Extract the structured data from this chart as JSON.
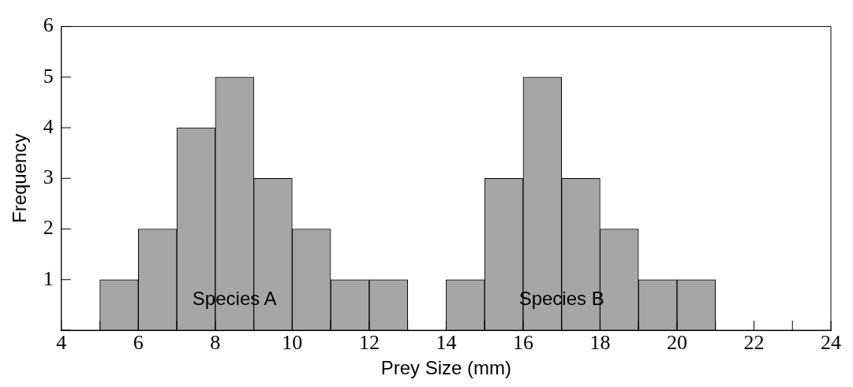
{
  "chart_data": {
    "type": "histogram",
    "xlabel": "Prey Size (mm)",
    "ylabel": "Frequency",
    "bins": [
      5,
      6,
      7,
      8,
      9,
      10,
      11,
      12,
      13,
      14,
      15,
      16,
      17,
      18,
      19,
      20,
      21
    ],
    "values": [
      1,
      2,
      4,
      5,
      3,
      2,
      1,
      1,
      0,
      1,
      3,
      5,
      3,
      2,
      1,
      1
    ],
    "color": "#a6a6a6",
    "xlim": [
      4,
      24
    ],
    "ylim": [
      0,
      6
    ],
    "xticks": [
      4,
      {
        "value": 5,
        "label": null
      },
      6,
      {
        "value": 7,
        "label": null
      },
      8,
      {
        "value": 9,
        "label": null
      },
      10,
      {
        "value": 11,
        "label": null
      },
      12,
      {
        "value": 13,
        "label": null
      },
      14,
      {
        "value": 15,
        "label": null
      },
      16,
      {
        "value": 17,
        "label": null
      },
      18,
      {
        "value": 19,
        "label": null
      },
      20,
      {
        "value": 21,
        "label": null
      },
      22,
      {
        "value": 23,
        "label": null
      },
      24
    ],
    "yticks": [
      {
        "value": 0,
        "label": null
      },
      1,
      2,
      3,
      4,
      5,
      6
    ],
    "annotations": [
      "Species A",
      "Species B"
    ],
    "grid": false,
    "legend": false
  }
}
